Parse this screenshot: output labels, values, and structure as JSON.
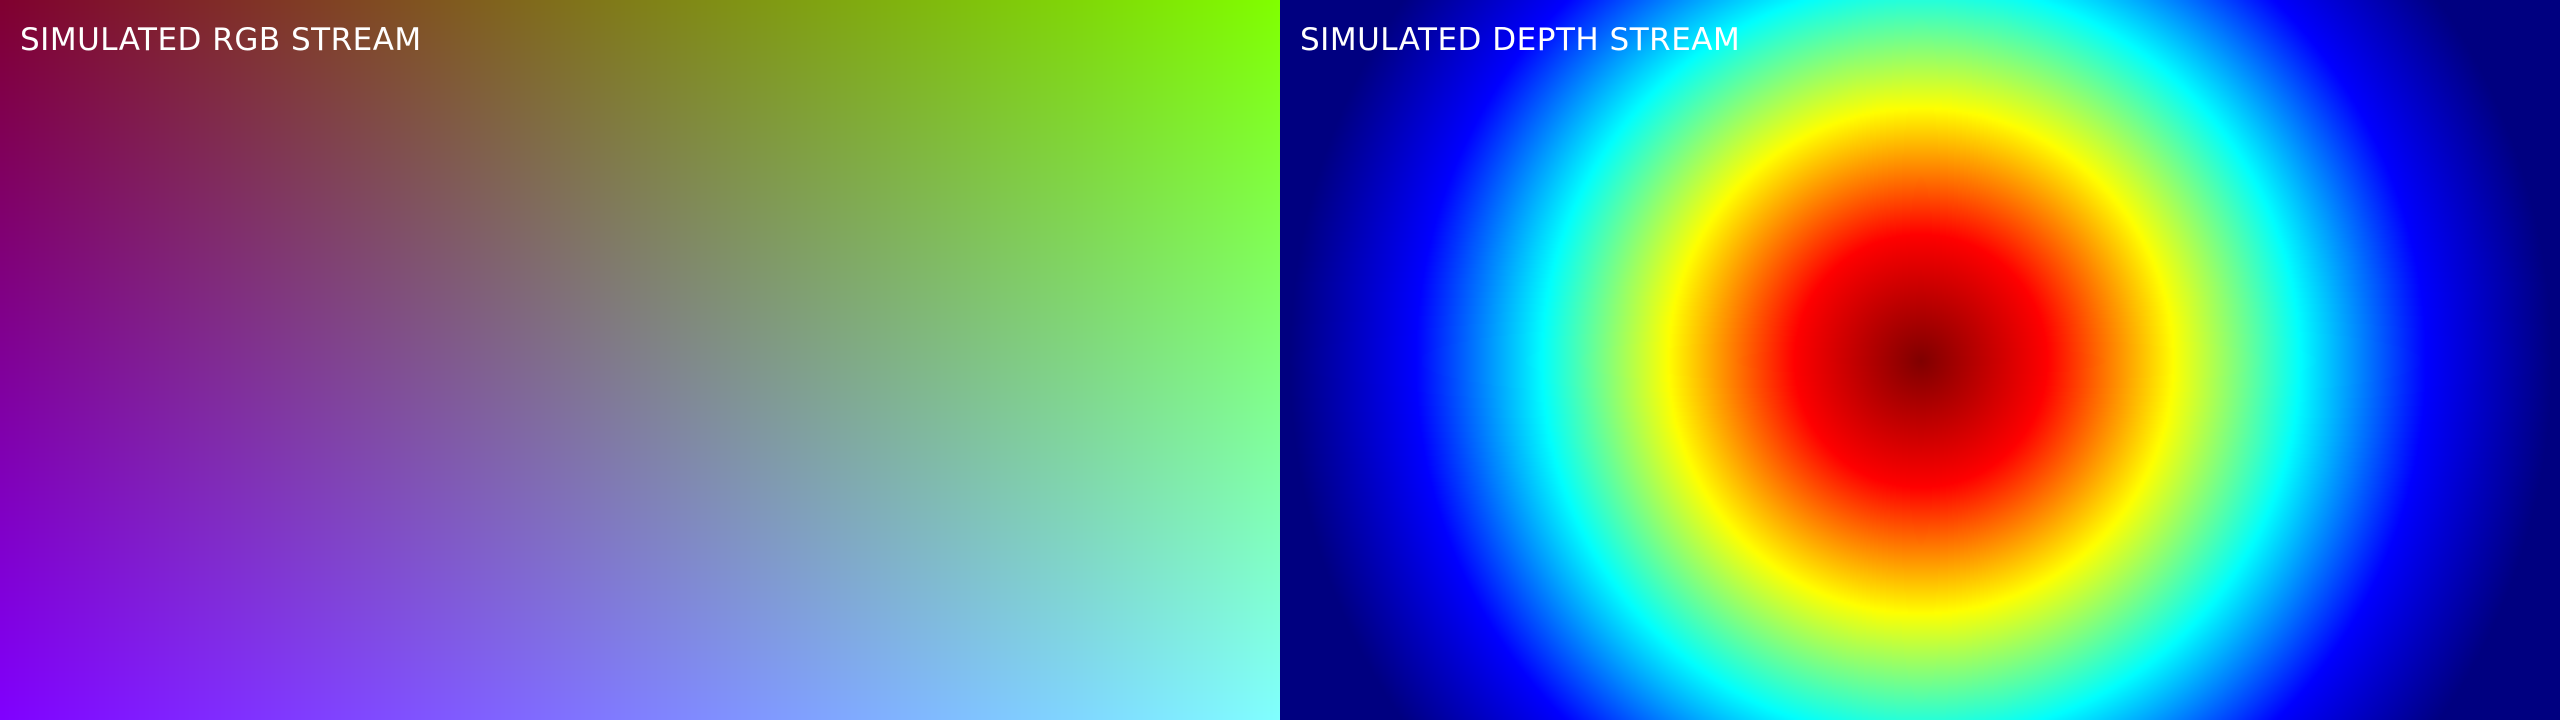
{
  "rgb_stream": {
    "label": "SIMULATED RGB STREAM",
    "gradient": {
      "top_left": "#800030",
      "top_right": "#80ff00",
      "bottom_left": "#8000ff",
      "bottom_right": "#80ffff"
    }
  },
  "depth_stream": {
    "label": "SIMULATED DEPTH STREAM",
    "colormap": "jet",
    "colormap_stops": [
      "#000080",
      "#0000ff",
      "#00ffff",
      "#ffff00",
      "#ff0000",
      "#800000"
    ]
  }
}
